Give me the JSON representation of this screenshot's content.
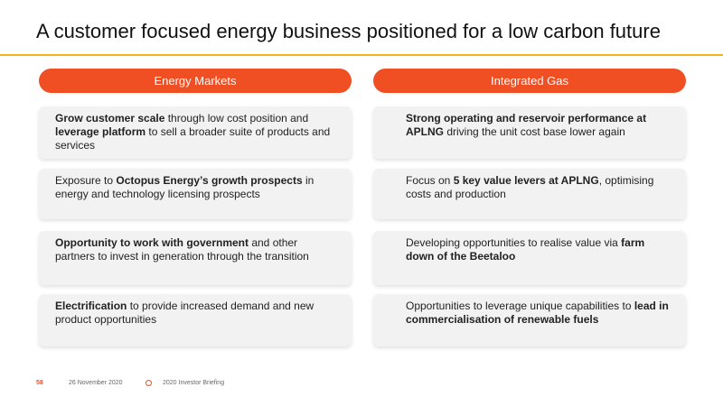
{
  "title": "A customer focused energy business positioned for a low carbon future",
  "colors": {
    "accent": "#f04e23",
    "rule": "#f7b21a",
    "card_bg": "#f2f2f2"
  },
  "columns": [
    {
      "header": "Energy Markets",
      "cards": [
        {
          "parts": [
            {
              "t": "Grow customer scale",
              "b": true
            },
            {
              "t": " through low cost position and ",
              "b": false
            },
            {
              "t": "leverage platform",
              "b": true
            },
            {
              "t": " to sell a broader suite of products and services",
              "b": false
            }
          ]
        },
        {
          "parts": [
            {
              "t": "Exposure to ",
              "b": false
            },
            {
              "t": "Octopus Energy’s growth prospects",
              "b": true
            },
            {
              "t": " in energy and technology licensing prospects",
              "b": false
            }
          ]
        },
        {
          "parts": [
            {
              "t": "Opportunity to work with government",
              "b": true
            },
            {
              "t": " and other partners to invest in generation through the transition",
              "b": false
            }
          ]
        },
        {
          "parts": [
            {
              "t": "Electrification",
              "b": true
            },
            {
              "t": " to provide increased demand and new product opportunities",
              "b": false
            }
          ]
        }
      ]
    },
    {
      "header": "Integrated Gas",
      "cards": [
        {
          "parts": [
            {
              "t": "Strong operating and reservoir performance at APLNG",
              "b": true
            },
            {
              "t": " driving the unit cost base lower again",
              "b": false
            }
          ]
        },
        {
          "parts": [
            {
              "t": "Focus on ",
              "b": false
            },
            {
              "t": "5 key value levers at APLNG",
              "b": true
            },
            {
              "t": ", optimising costs and production",
              "b": false
            }
          ]
        },
        {
          "parts": [
            {
              "t": "Developing opportunities to realise value via ",
              "b": false
            },
            {
              "t": "farm down of the Beetaloo",
              "b": true
            }
          ]
        },
        {
          "parts": [
            {
              "t": "Opportunities to leverage unique capabilities to ",
              "b": false
            },
            {
              "t": "lead in commercialisation of renewable fuels",
              "b": true
            }
          ]
        }
      ]
    }
  ],
  "footer": {
    "page": "58",
    "date": "26 November 2020",
    "event": "2020 Investor Briefing"
  }
}
